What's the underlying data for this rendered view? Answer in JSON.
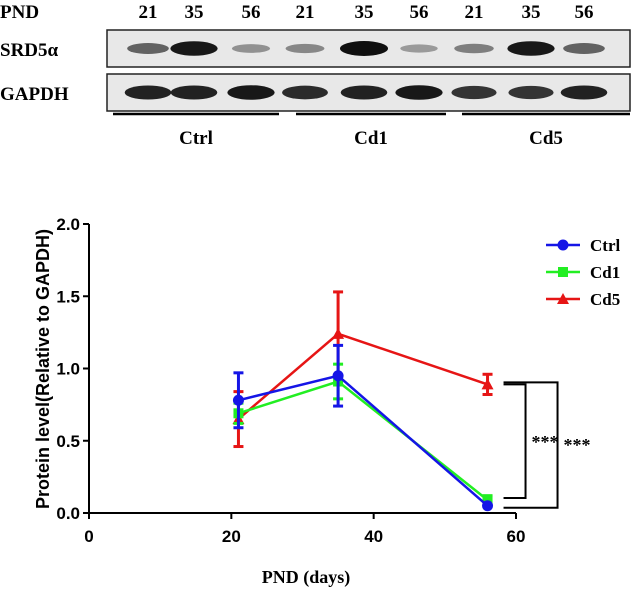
{
  "blot": {
    "pnd_label": "PND",
    "pnd_values": [
      "21",
      "35",
      "56",
      "21",
      "35",
      "56",
      "21",
      "35",
      "56"
    ],
    "rows": [
      {
        "label": "SRD5α",
        "intensities": [
          0.55,
          0.95,
          0.3,
          0.35,
          1.0,
          0.25,
          0.4,
          0.95,
          0.55
        ]
      },
      {
        "label": "GAPDH",
        "intensities": [
          0.9,
          0.9,
          0.95,
          0.85,
          0.9,
          0.95,
          0.8,
          0.8,
          0.9
        ]
      }
    ],
    "groups": [
      "Ctrl",
      "Cd1",
      "Cd5"
    ]
  },
  "chart_data": {
    "type": "line",
    "xlabel": "PND (days)",
    "ylabel": "Protein level(Relative to GAPDH)",
    "xlim": [
      0,
      60
    ],
    "ylim": [
      0,
      2.0
    ],
    "xticks": [
      0,
      20,
      40,
      60
    ],
    "yticks": [
      0.0,
      0.5,
      1.0,
      1.5,
      2.0
    ],
    "ytick_labels": [
      "0.0",
      "0.5",
      "1.0",
      "1.5",
      "2.0"
    ],
    "legend_position": "top-right",
    "x": [
      21,
      35,
      56
    ],
    "series": [
      {
        "name": "Ctrl",
        "marker": "circle",
        "color": "#1515e6",
        "values": [
          0.78,
          0.95,
          0.05
        ],
        "errors": [
          0.19,
          0.21,
          0.0
        ]
      },
      {
        "name": "Cd1",
        "marker": "square",
        "color": "#22ee22",
        "values": [
          0.69,
          0.91,
          0.09
        ],
        "errors": [
          0.07,
          0.12,
          0.03
        ]
      },
      {
        "name": "Cd5",
        "marker": "triangle",
        "color": "#e61515",
        "values": [
          0.65,
          1.24,
          0.89
        ],
        "errors": [
          0.19,
          0.29,
          0.07
        ]
      }
    ],
    "annotations": [
      "***",
      "***"
    ]
  }
}
